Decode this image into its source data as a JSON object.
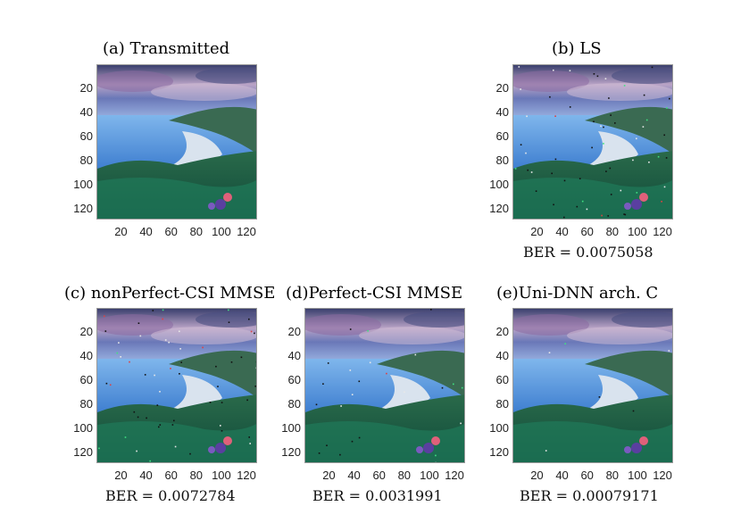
{
  "figure": {
    "panels": [
      {
        "id": "a",
        "title": "(a) Transmitted",
        "ber": "",
        "noise": 0,
        "yticks": [
          "20",
          "40",
          "60",
          "80",
          "100",
          "120"
        ],
        "xticks": [
          "20",
          "40",
          "60",
          "80",
          "100",
          "120"
        ]
      },
      {
        "id": "b",
        "title": "(b) LS",
        "ber": "BER = 0.0075058",
        "noise": 60,
        "yticks": [
          "20",
          "40",
          "60",
          "80",
          "100",
          "120"
        ],
        "xticks": [
          "20",
          "40",
          "60",
          "80",
          "100",
          "120"
        ]
      },
      {
        "id": "c",
        "title": "(c) nonPerfect-CSI MMSE",
        "ber": "BER = 0.0072784",
        "noise": 58,
        "yticks": [
          "20",
          "40",
          "60",
          "80",
          "100",
          "120"
        ],
        "xticks": [
          "20",
          "40",
          "60",
          "80",
          "100",
          "120"
        ]
      },
      {
        "id": "d",
        "title": "(d)Perfect-CSI MMSE",
        "ber": "BER = 0.0031991",
        "noise": 26,
        "yticks": [
          "20",
          "40",
          "60",
          "80",
          "100",
          "120"
        ],
        "xticks": [
          "20",
          "40",
          "60",
          "80",
          "100",
          "120"
        ]
      },
      {
        "id": "e",
        "title": "(e)Uni-DNN arch. C",
        "ber": "BER = 0.00079171",
        "noise": 6,
        "yticks": [
          "20",
          "40",
          "60",
          "80",
          "100",
          "120"
        ],
        "xticks": [
          "20",
          "40",
          "60",
          "80",
          "100",
          "120"
        ]
      }
    ],
    "colors": {
      "sky_top": "#3a3f6e",
      "sky_mid": "#6a78b8",
      "cloud": "#b9a3c6",
      "sea": "#3f7fd0",
      "sand": "#d9e3ee",
      "hill": "#2a6a4a",
      "grass": "#1f7a5a",
      "flower_pink": "#e0607a",
      "flower_purple": "#5a3fa0"
    }
  }
}
